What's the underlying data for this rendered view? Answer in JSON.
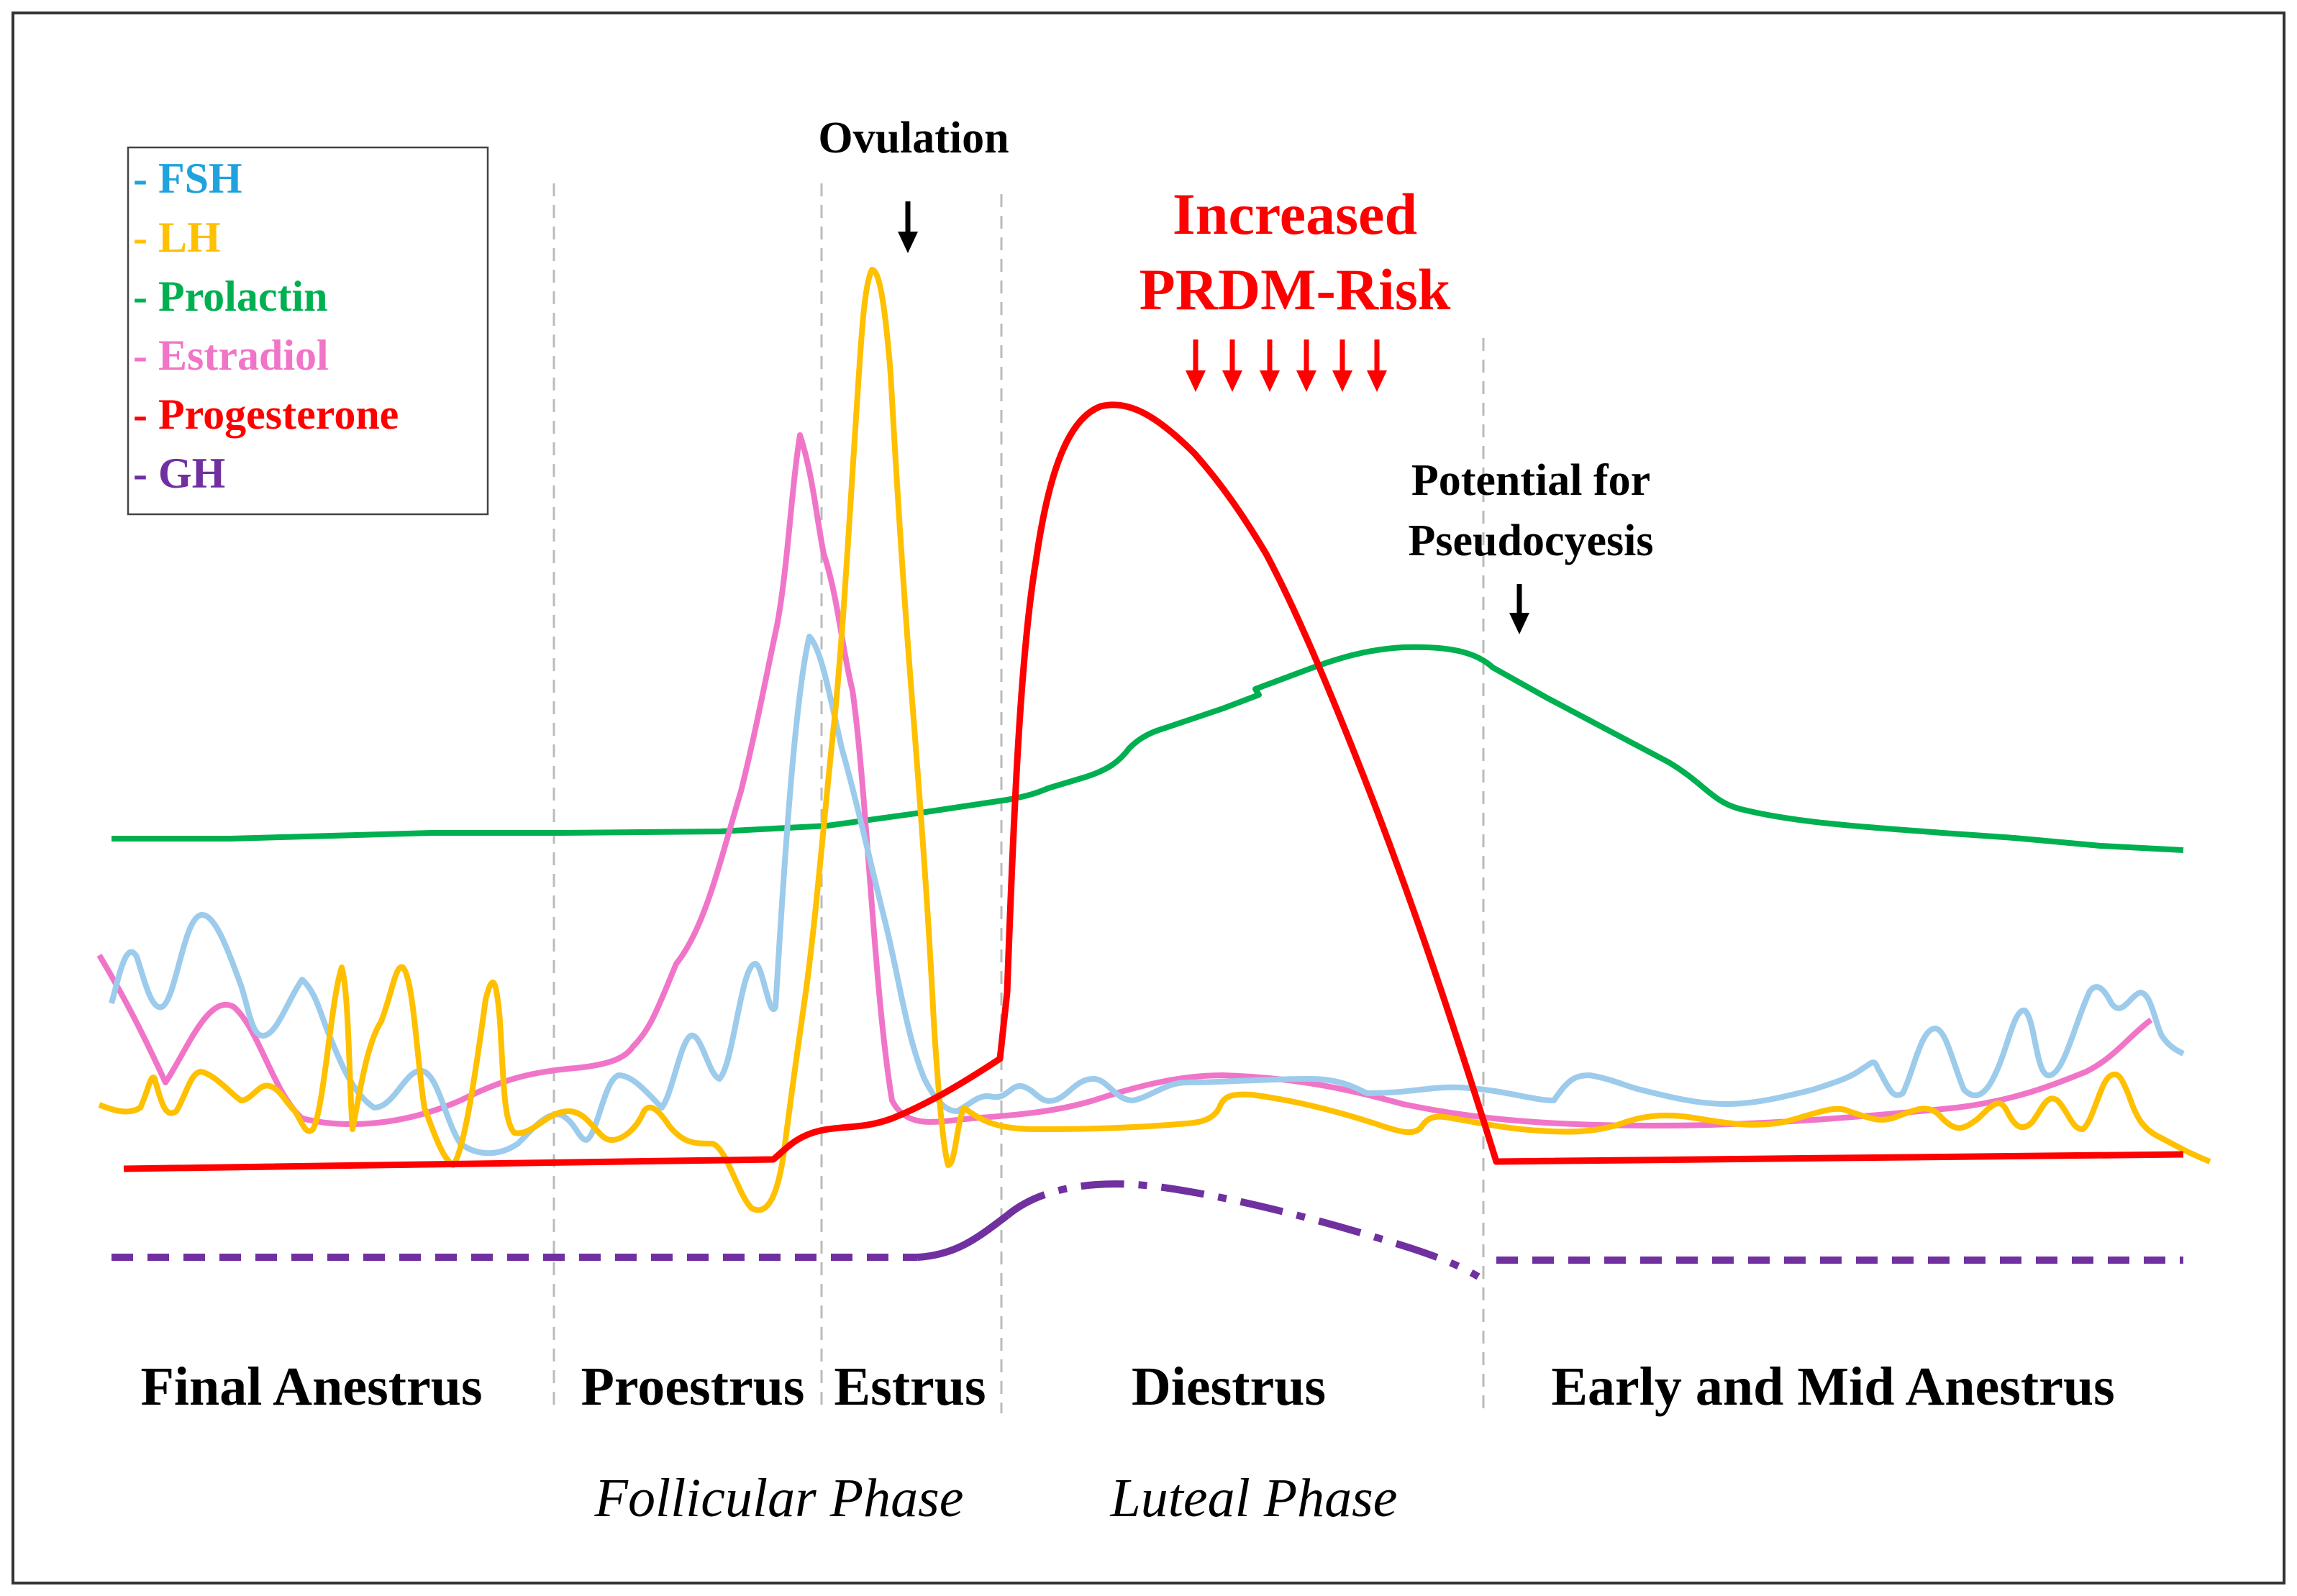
{
  "legend": {
    "items": [
      {
        "label": "- FSH",
        "color": "#1fa3dd"
      },
      {
        "label": "- LH",
        "color": "#ffc000"
      },
      {
        "label": "- Prolactin",
        "color": "#00b050"
      },
      {
        "label": "- Estradiol",
        "color": "#f075c8"
      },
      {
        "label": "- Progesterone",
        "color": "#ff0000"
      },
      {
        "label": "- GH",
        "color": "#7030a0"
      }
    ]
  },
  "annotations": {
    "ovulation": "Ovulation",
    "risk_line1": "Increased",
    "risk_line2": "PRDM-Risk",
    "pseudo_line1": "Potential for",
    "pseudo_line2": "Pseudocyesis"
  },
  "phases": {
    "final_anestrus": "Final Anestrus",
    "proestrus": "Proestrus",
    "estrus": "Estrus",
    "diestrus": "Diestrus",
    "early_mid_anestrus": "Early and Mid Anestrus"
  },
  "super_phases": {
    "follicular": "Follicular Phase",
    "luteal": "Luteal Phase"
  },
  "colors": {
    "fsh_curve": "#9ccbec",
    "lh_curve": "#ffc000",
    "prolactin_curve": "#00b050",
    "estradiol_curve": "#f075c8",
    "progesterone_curve": "#ff0000",
    "gh_curve": "#7030a0",
    "arrow_black": "#000000",
    "arrow_red": "#ff0000"
  }
}
